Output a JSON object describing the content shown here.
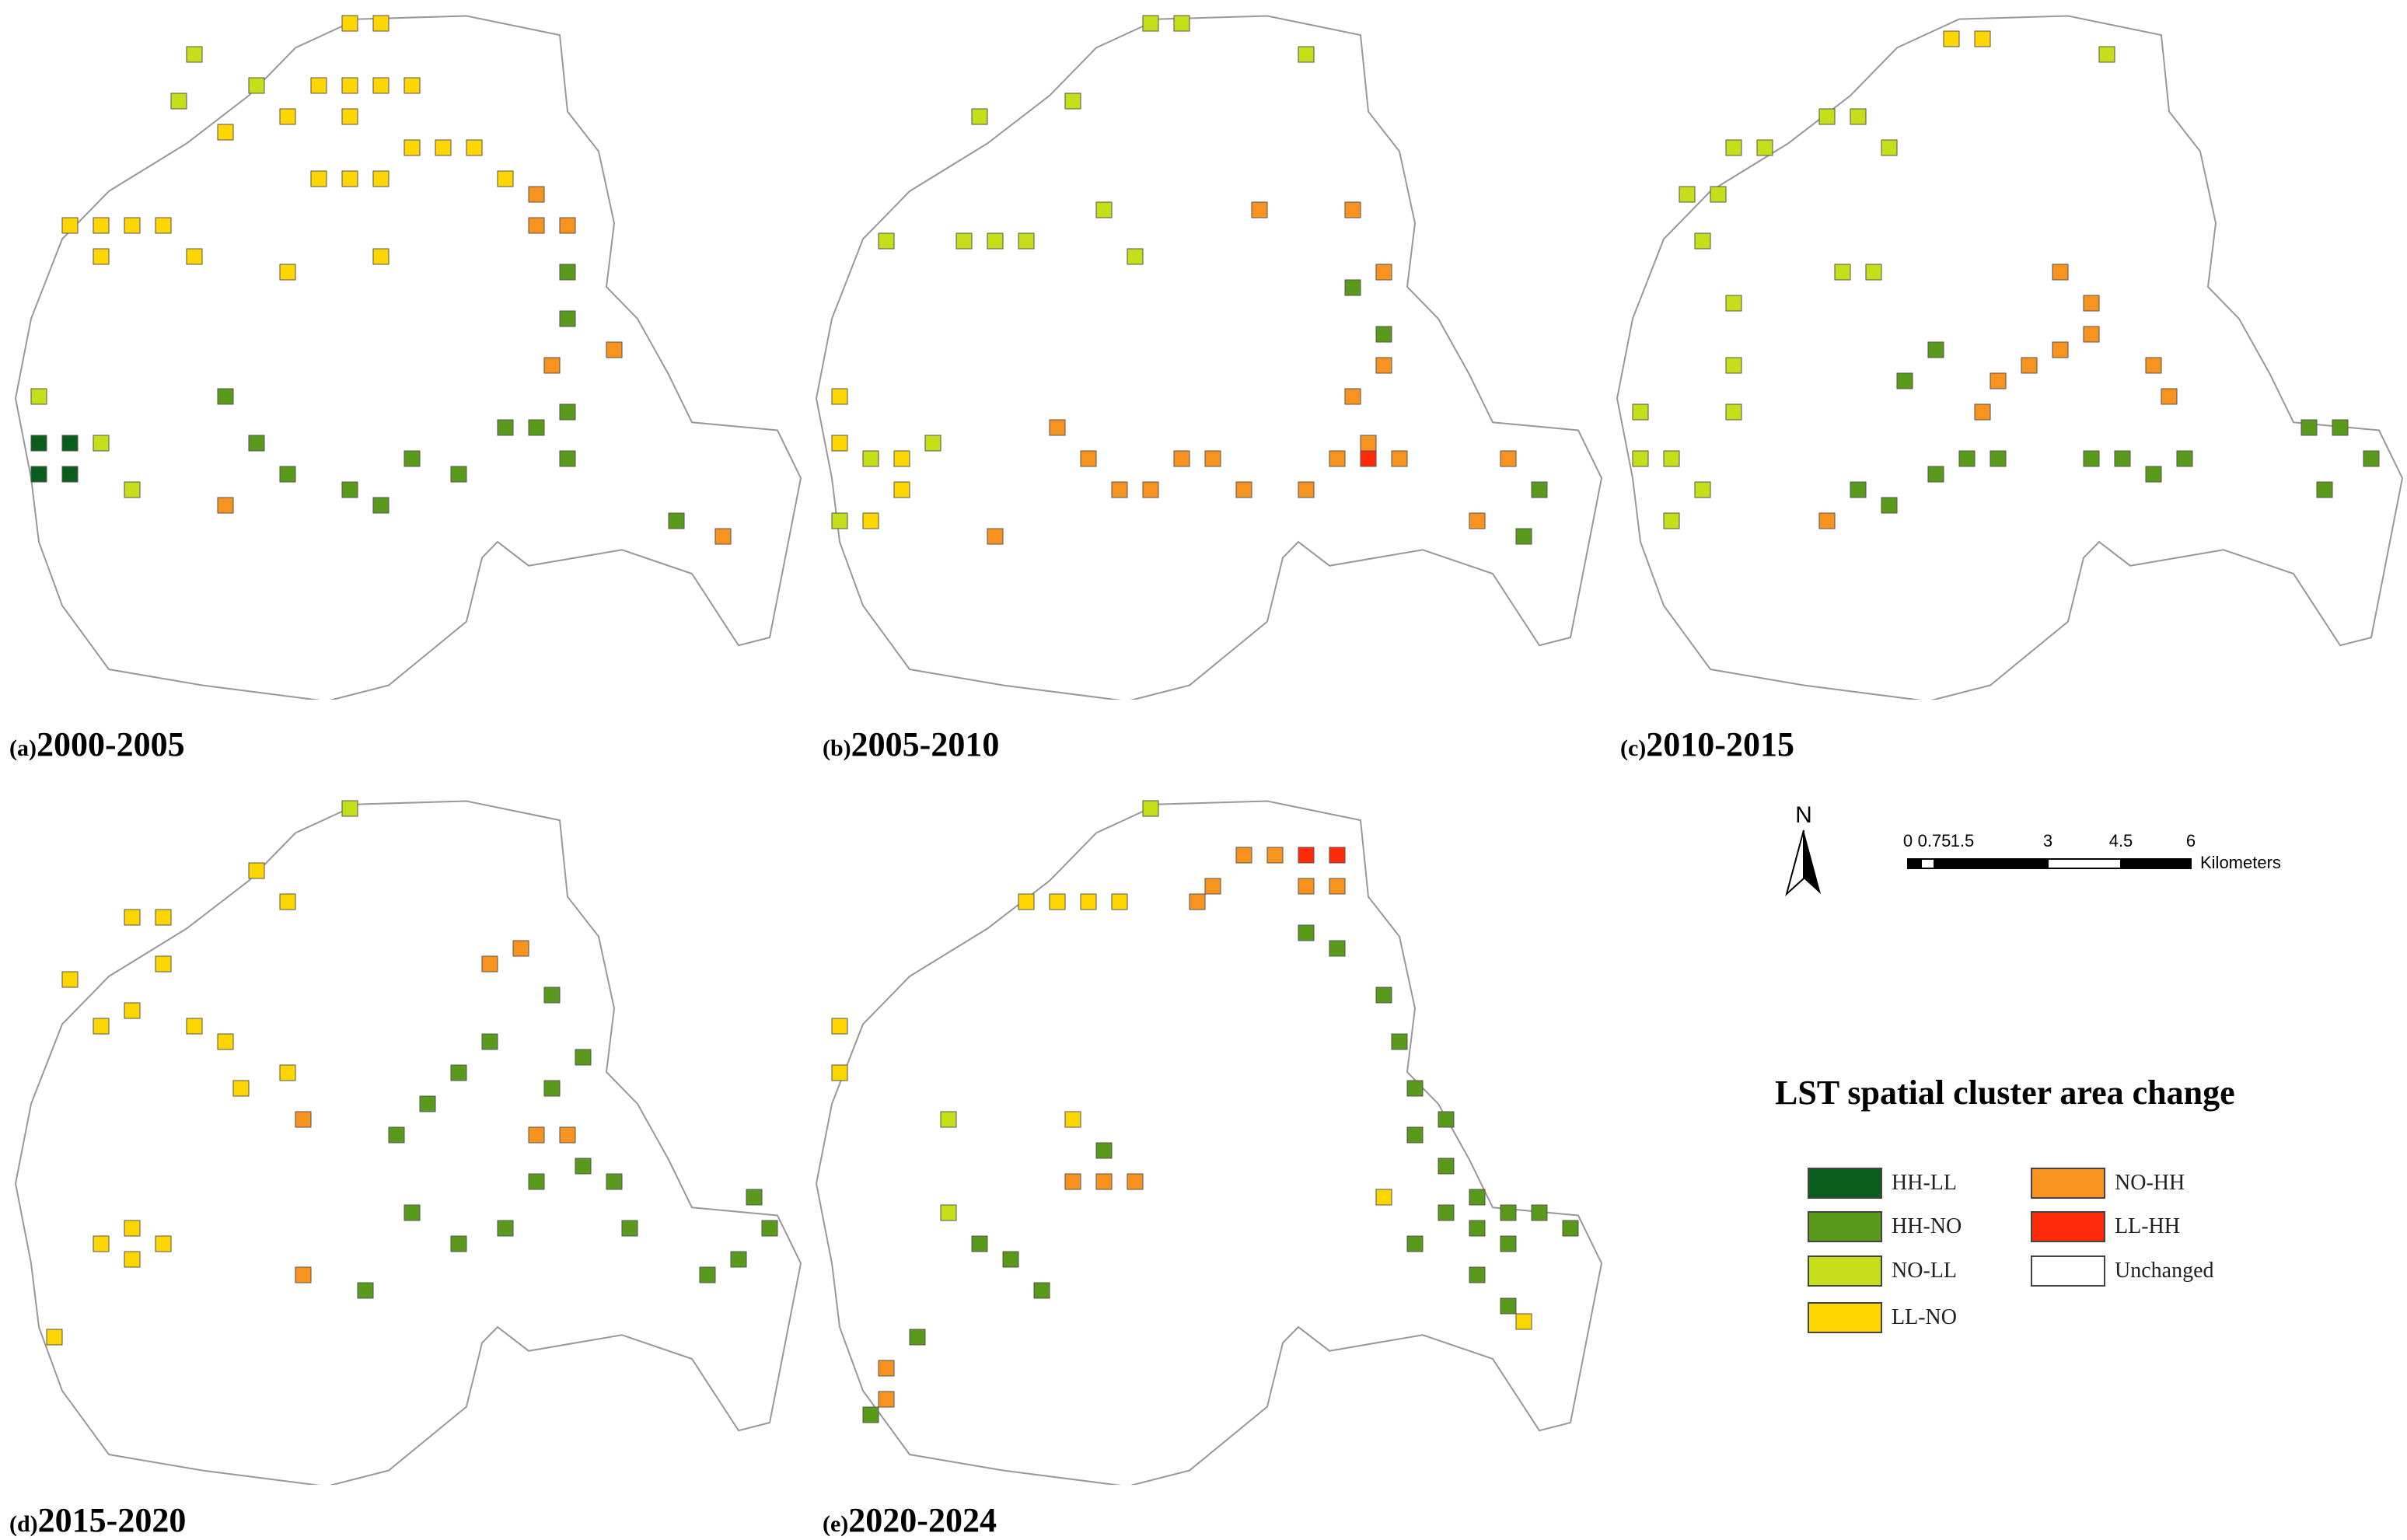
{
  "title": "LST spatial cluster area change",
  "panels": [
    {
      "letter": "(a)",
      "years": "2000-2005"
    },
    {
      "letter": "(b)",
      "years": "2005-2010"
    },
    {
      "letter": "(c)",
      "years": "2010-2015"
    },
    {
      "letter": "(d)",
      "years": "2015-2020"
    },
    {
      "letter": "(e)",
      "years": "2020-2024"
    }
  ],
  "north_arrow": {
    "label": "N"
  },
  "scale_bar": {
    "ticks": [
      "0",
      "0.75",
      "1.5",
      "3",
      "4.5",
      "6"
    ],
    "unit": "Kilometers"
  },
  "legend": {
    "items": [
      {
        "label": "HH-LL",
        "color": "#0b5d1e"
      },
      {
        "label": "HH-NO",
        "color": "#5a9a1a"
      },
      {
        "label": "NO-LL",
        "color": "#c5e01a"
      },
      {
        "label": "LL-NO",
        "color": "#ffd700"
      },
      {
        "label": "NO-HH",
        "color": "#f7931e"
      },
      {
        "label": "LL-HH",
        "color": "#ff2a0a"
      },
      {
        "label": "Unchanged",
        "color": "#ffffff"
      }
    ]
  }
}
